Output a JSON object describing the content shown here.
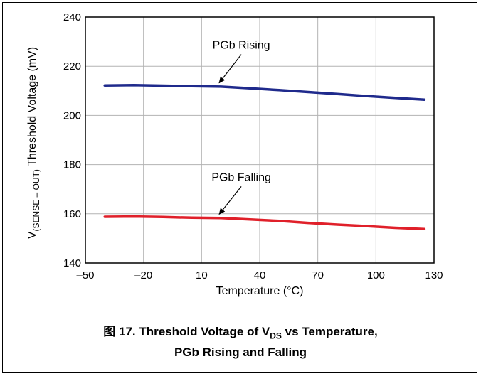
{
  "chart_data": {
    "type": "line",
    "xlabel": "Temperature (°C)",
    "ylabel_parts": {
      "main": "V",
      "sub": "(SENSE – OUT)",
      "rest": " Threshold Voltage (mV)"
    },
    "xlim": [
      -50,
      130
    ],
    "ylim": [
      140,
      240
    ],
    "xticks": [
      -50,
      -20,
      10,
      40,
      70,
      100,
      130
    ],
    "xtick_labels": [
      "–50",
      "–20",
      "10",
      "40",
      "70",
      "100",
      "130"
    ],
    "yticks": [
      140,
      160,
      180,
      200,
      220,
      240
    ],
    "ytick_labels": [
      "140",
      "160",
      "180",
      "200",
      "220",
      "240"
    ],
    "grid": true,
    "series": [
      {
        "name": "PGb Rising",
        "color": "#1f2a8c",
        "x": [
          -40,
          -25,
          -10,
          5,
          20,
          35,
          50,
          65,
          80,
          95,
          110,
          125
        ],
        "y": [
          212.2,
          212.3,
          212.1,
          211.9,
          211.7,
          211.0,
          210.3,
          209.5,
          208.7,
          207.9,
          207.1,
          206.4
        ]
      },
      {
        "name": "PGb Falling",
        "color": "#e0202a",
        "x": [
          -40,
          -25,
          -10,
          5,
          20,
          35,
          50,
          65,
          80,
          95,
          110,
          125
        ],
        "y": [
          158.8,
          158.9,
          158.7,
          158.4,
          158.3,
          157.7,
          157.1,
          156.3,
          155.6,
          155.0,
          154.3,
          153.8
        ]
      }
    ],
    "annotations": [
      {
        "text": "PGb Rising",
        "arrow_to": [
          18,
          211.8
        ]
      },
      {
        "text": "PGb Falling",
        "arrow_to": [
          18,
          158.4
        ]
      }
    ]
  },
  "caption": {
    "prefix": "图 17. Threshold Voltage of V",
    "sub": "DS",
    "line1_rest": " vs Temperature,",
    "line2": "PGb Rising and Falling"
  }
}
